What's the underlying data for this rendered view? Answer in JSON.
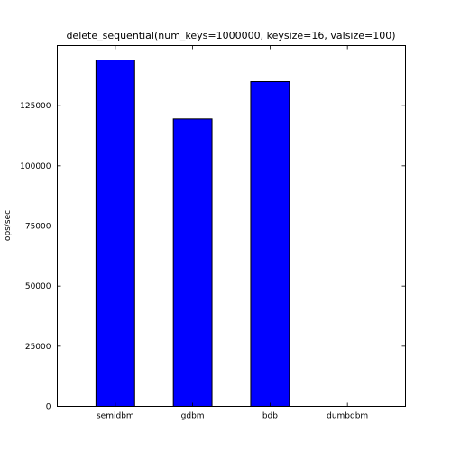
{
  "chart_data": {
    "type": "bar",
    "title": "delete_sequential(num_keys=1000000, keysize=16, valsize=100)",
    "xlabel": "",
    "ylabel": "ops/sec",
    "categories": [
      "semidbm",
      "gdbm",
      "bdb",
      "dumbdbm"
    ],
    "values": [
      144000,
      119500,
      135000,
      0
    ],
    "ylim": [
      0,
      150000
    ],
    "yticks": [
      0,
      25000,
      50000,
      75000,
      100000,
      125000
    ],
    "ytick_labels": [
      "0",
      "25000",
      "50000",
      "75000",
      "100000",
      "125000"
    ],
    "bar_color": "#0000ff",
    "grid": false,
    "legend": "none"
  }
}
